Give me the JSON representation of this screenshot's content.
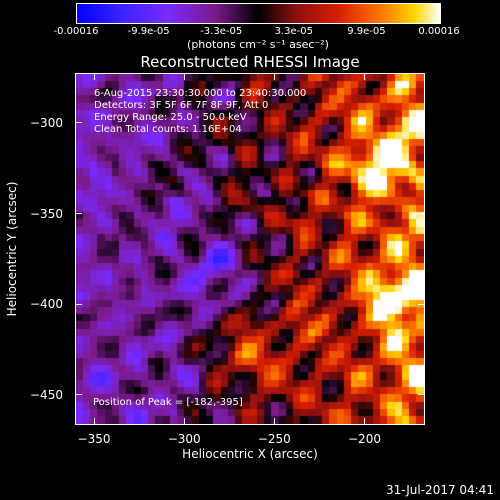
{
  "colorbar": {
    "ticks": [
      "-0.00016",
      "-9.9e-05",
      "-3.3e-05",
      "3.3e-05",
      "9.9e-05",
      "0.00016"
    ],
    "unit_label": "(photons cm⁻² s⁻¹ asec⁻²)",
    "colors": [
      "#0000ff",
      "#7a2aff",
      "#000000",
      "#d81e00",
      "#ffd500",
      "#ffffff"
    ]
  },
  "chart_data": {
    "type": "heatmap",
    "title": "Reconstructed RHESSI Image",
    "xlabel": "Heliocentric X (arcsec)",
    "ylabel": "Heliocentric Y (arcsec)",
    "xlim": [
      -360,
      -167
    ],
    "ylim": [
      -466,
      -273
    ],
    "xticks": [
      -350,
      -300,
      -250,
      -200
    ],
    "yticks": [
      -300,
      -350,
      -400,
      -450
    ],
    "clim": [
      -0.00016,
      0.00016
    ],
    "peak_position": [
      -182,
      -395
    ]
  },
  "annotations": {
    "time_range": "6-Aug-2015 23:30:30.000 to 23:40:30.000",
    "detectors": "Detectors: 3F 5F 6F 7F 8F 9F, Att 0",
    "energy": "Energy Range: 25.0 - 50.0 keV",
    "clean": "Clean     Total counts: 1.16E+04",
    "peak": "Position of Peak = [-182,-395]"
  },
  "timestamp": "31-Jul-2017 04:41"
}
